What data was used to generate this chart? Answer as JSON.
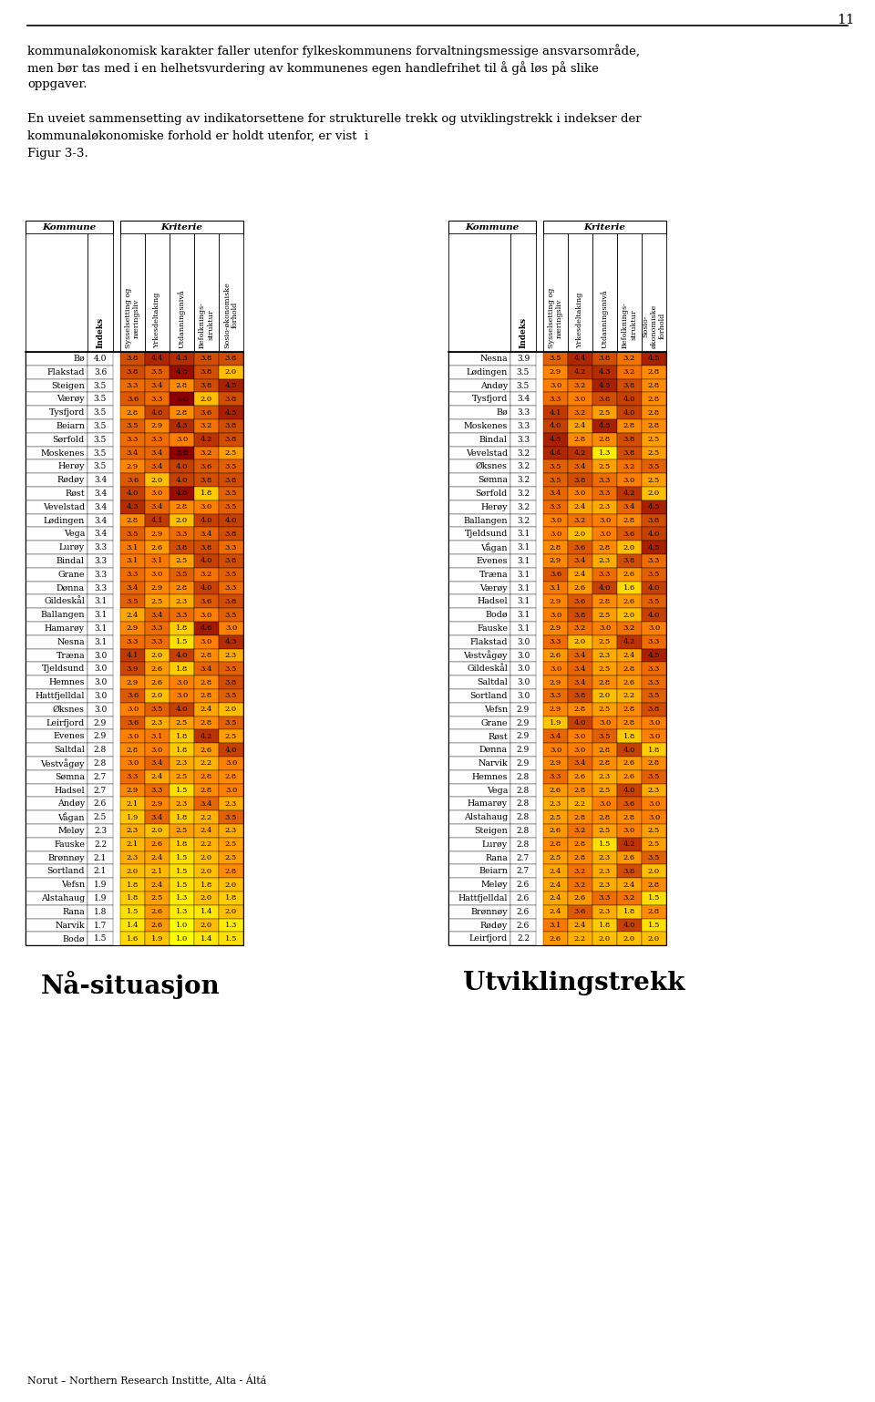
{
  "page_number": "11",
  "header_text": [
    "kommunaløkonomisk karakter faller utenfor fylkeskommunens forvaltningsmessige ansvarsområde,",
    "men bør tas med i en helhetsvurdering av kommunenes egen handlefrihet til å gå løs på slike",
    "oppgaver.",
    "",
    "En uveiet sammensetting av indikatorsettene for strukturelle trekk og utviklingstrekk i indekser der",
    "kommunaløkonomiske forhold er holdt utenfor, er vist  i",
    "Figur 3-3."
  ],
  "col_headers_left": [
    "Indeks",
    "Sysselsetting og\nnæringsliv",
    "Yrkesdeltaking",
    "Utdanningsnivå",
    "Befolknings-\nstruktur",
    "Sosio-økonomiske\nforhold"
  ],
  "col_headers_right": [
    "Indeks",
    "Sysselsetting og\nnæringsliv",
    "Yrkesdeltaking",
    "Utdanningsnivå",
    "Befolknings-\nstruktur",
    "Sosio-\nøkonomiske\nforhold"
  ],
  "section_left": "Nå-situasjon",
  "section_right": "Utviklingstrekk",
  "footer": "Norut – Northern Research Institte, Alta - Áltá",
  "left_data": [
    [
      "Bø",
      4.0,
      3.8,
      4.4,
      4.3,
      3.8,
      3.8
    ],
    [
      "Flakstad",
      3.6,
      3.8,
      3.5,
      4.8,
      3.8,
      2.0
    ],
    [
      "Steigen",
      3.5,
      3.3,
      3.4,
      2.8,
      3.8,
      4.5
    ],
    [
      "Værøy",
      3.5,
      3.6,
      3.3,
      5.0,
      2.0,
      3.8
    ],
    [
      "Tysfjord",
      3.5,
      2.8,
      4.0,
      2.8,
      3.6,
      4.5
    ],
    [
      "Beiarn",
      3.5,
      3.5,
      2.9,
      4.3,
      3.2,
      3.8
    ],
    [
      "Sørfold",
      3.5,
      3.3,
      3.3,
      3.0,
      4.2,
      3.8
    ],
    [
      "Moskenes",
      3.5,
      3.4,
      3.4,
      5.0,
      3.2,
      2.5
    ],
    [
      "Herøy",
      3.5,
      2.9,
      3.4,
      4.0,
      3.6,
      3.5
    ],
    [
      "Rødøy",
      3.4,
      3.6,
      2.0,
      4.0,
      3.8,
      3.8
    ],
    [
      "Røst",
      3.4,
      4.0,
      3.0,
      4.8,
      1.8,
      3.5
    ],
    [
      "Vevelstad",
      3.4,
      4.3,
      3.4,
      2.8,
      3.0,
      3.5
    ],
    [
      "Lødingen",
      3.4,
      2.8,
      4.1,
      2.0,
      4.0,
      4.0
    ],
    [
      "Vega",
      3.4,
      3.5,
      2.9,
      3.3,
      3.4,
      3.8
    ],
    [
      "Lurøy",
      3.3,
      3.1,
      2.6,
      3.8,
      3.8,
      3.3
    ],
    [
      "Bindal",
      3.3,
      3.1,
      3.1,
      2.5,
      4.0,
      3.8
    ],
    [
      "Grane",
      3.3,
      3.3,
      3.0,
      3.5,
      3.2,
      3.5
    ],
    [
      "Dønna",
      3.3,
      3.4,
      2.9,
      2.8,
      4.0,
      3.3
    ],
    [
      "Gildeskål",
      3.1,
      3.5,
      2.5,
      2.3,
      3.6,
      3.8
    ],
    [
      "Ballangen",
      3.1,
      2.4,
      3.4,
      3.3,
      3.0,
      3.5
    ],
    [
      "Hamarøy",
      3.1,
      2.9,
      3.3,
      1.8,
      4.6,
      3.0
    ],
    [
      "Nesna",
      3.1,
      3.3,
      3.3,
      1.5,
      3.0,
      4.3
    ],
    [
      "Træna",
      3.0,
      4.1,
      2.0,
      4.0,
      2.8,
      2.3
    ],
    [
      "Tjeldsund",
      3.0,
      3.9,
      2.6,
      1.8,
      3.4,
      3.5
    ],
    [
      "Hemnes",
      3.0,
      2.9,
      2.6,
      3.0,
      2.8,
      3.8
    ],
    [
      "Hattfjelldal",
      3.0,
      3.6,
      2.0,
      3.0,
      2.8,
      3.5
    ],
    [
      "Øksnes",
      3.0,
      3.0,
      3.5,
      4.0,
      2.4,
      2.0
    ],
    [
      "Leirfjord",
      2.9,
      3.6,
      2.3,
      2.5,
      2.8,
      3.5
    ],
    [
      "Evenes",
      2.9,
      3.0,
      3.1,
      1.8,
      4.2,
      2.5
    ],
    [
      "Saltdal",
      2.8,
      2.8,
      3.0,
      1.8,
      2.6,
      4.0
    ],
    [
      "Vestvågøy",
      2.8,
      3.0,
      3.4,
      2.3,
      2.2,
      3.0
    ],
    [
      "Sømna",
      2.7,
      3.3,
      2.4,
      2.5,
      2.8,
      2.8
    ],
    [
      "Hadsel",
      2.7,
      2.9,
      3.3,
      1.5,
      2.8,
      3.0
    ],
    [
      "Andøy",
      2.6,
      2.1,
      2.9,
      2.3,
      3.4,
      2.3
    ],
    [
      "Vågan",
      2.5,
      1.9,
      3.4,
      1.8,
      2.2,
      3.5
    ],
    [
      "Meløy",
      2.3,
      2.3,
      2.0,
      2.5,
      2.4,
      2.3
    ],
    [
      "Fauske",
      2.2,
      2.1,
      2.6,
      1.8,
      2.2,
      2.5
    ],
    [
      "Brønnøy",
      2.1,
      2.3,
      2.4,
      1.5,
      2.0,
      2.5
    ],
    [
      "Sortland",
      2.1,
      2.0,
      2.1,
      1.5,
      2.0,
      2.8
    ],
    [
      "Vefsn",
      1.9,
      1.8,
      2.4,
      1.5,
      1.8,
      2.0
    ],
    [
      "Alstahaug",
      1.9,
      1.8,
      2.5,
      1.3,
      2.0,
      1.8
    ],
    [
      "Rana",
      1.8,
      1.5,
      2.6,
      1.3,
      1.4,
      2.0
    ],
    [
      "Narvik",
      1.7,
      1.4,
      2.6,
      1.0,
      2.0,
      1.3
    ],
    [
      "Bodø",
      1.5,
      1.6,
      1.9,
      1.0,
      1.4,
      1.5
    ]
  ],
  "right_data": [
    [
      "Nesna",
      3.9,
      3.5,
      4.4,
      3.8,
      3.2,
      4.5
    ],
    [
      "Lødingen",
      3.5,
      2.9,
      4.2,
      4.3,
      3.2,
      2.8
    ],
    [
      "Andøy",
      3.5,
      3.0,
      3.2,
      4.5,
      3.8,
      2.8
    ],
    [
      "Tysfjord",
      3.4,
      3.3,
      3.0,
      3.8,
      4.0,
      2.8
    ],
    [
      "Bø",
      3.3,
      4.1,
      3.2,
      2.5,
      4.0,
      2.8
    ],
    [
      "Moskenes",
      3.3,
      4.0,
      2.4,
      4.5,
      2.8,
      2.8
    ],
    [
      "Bindal",
      3.3,
      4.5,
      2.8,
      2.8,
      3.8,
      2.5
    ],
    [
      "Vevelstad",
      3.2,
      4.4,
      4.2,
      1.3,
      3.8,
      2.5
    ],
    [
      "Øksnes",
      3.2,
      3.5,
      3.4,
      2.5,
      3.2,
      3.5
    ],
    [
      "Sømna",
      3.2,
      3.5,
      3.8,
      3.3,
      3.0,
      2.5
    ],
    [
      "Sørfold",
      3.2,
      3.4,
      3.0,
      3.3,
      4.2,
      2.0
    ],
    [
      "Herøy",
      3.2,
      3.3,
      2.4,
      2.3,
      3.4,
      4.5
    ],
    [
      "Ballangen",
      3.2,
      3.0,
      3.2,
      3.0,
      2.8,
      3.8
    ],
    [
      "Tjeldsund",
      3.1,
      3.0,
      2.0,
      3.0,
      3.6,
      4.0
    ],
    [
      "Vågan",
      3.1,
      2.8,
      3.6,
      2.8,
      2.0,
      4.5
    ],
    [
      "Evenes",
      3.1,
      2.9,
      3.4,
      2.3,
      3.8,
      3.3
    ],
    [
      "Træna",
      3.1,
      3.6,
      2.4,
      3.3,
      2.6,
      3.5
    ],
    [
      "Værøy",
      3.1,
      3.1,
      2.6,
      4.0,
      1.6,
      4.0
    ],
    [
      "Hadsel",
      3.1,
      2.9,
      3.6,
      2.8,
      2.6,
      3.5
    ],
    [
      "Bodø",
      3.1,
      3.0,
      3.8,
      2.5,
      2.0,
      4.0
    ],
    [
      "Fauske",
      3.1,
      2.9,
      3.2,
      3.0,
      3.2,
      3.0
    ],
    [
      "Flakstad",
      3.0,
      3.3,
      2.0,
      2.5,
      4.2,
      3.3
    ],
    [
      "Vestvågøy",
      3.0,
      2.6,
      3.4,
      2.3,
      2.4,
      4.5
    ],
    [
      "Gildeskål",
      3.0,
      3.0,
      3.4,
      2.5,
      2.8,
      3.3
    ],
    [
      "Saltdal",
      3.0,
      2.9,
      3.4,
      2.8,
      2.6,
      3.3
    ],
    [
      "Sortland",
      3.0,
      3.3,
      3.8,
      2.0,
      2.2,
      3.5
    ],
    [
      "Vefsn",
      2.9,
      2.9,
      2.8,
      2.5,
      2.8,
      3.8
    ],
    [
      "Grane",
      2.9,
      1.9,
      4.0,
      3.0,
      2.8,
      3.0
    ],
    [
      "Røst",
      2.9,
      3.4,
      3.0,
      3.5,
      1.8,
      3.0
    ],
    [
      "Dønna",
      2.9,
      3.0,
      3.0,
      2.8,
      4.0,
      1.8
    ],
    [
      "Narvik",
      2.9,
      2.9,
      3.4,
      2.8,
      2.6,
      2.8
    ],
    [
      "Hemnes",
      2.8,
      3.3,
      2.6,
      2.3,
      2.6,
      3.5
    ],
    [
      "Vega",
      2.8,
      2.6,
      2.8,
      2.5,
      4.0,
      2.3
    ],
    [
      "Hamarøy",
      2.8,
      2.3,
      2.2,
      3.0,
      3.6,
      3.0
    ],
    [
      "Alstahaug",
      2.8,
      2.5,
      2.8,
      2.8,
      2.8,
      3.0
    ],
    [
      "Steigen",
      2.8,
      2.6,
      3.2,
      2.5,
      3.0,
      2.5
    ],
    [
      "Lurøy",
      2.8,
      2.8,
      2.8,
      1.5,
      4.2,
      2.5
    ],
    [
      "Rana",
      2.7,
      2.5,
      2.8,
      2.3,
      2.6,
      3.5
    ],
    [
      "Beiarn",
      2.7,
      2.4,
      3.2,
      2.3,
      3.8,
      2.0
    ],
    [
      "Meløy",
      2.6,
      2.4,
      3.2,
      2.3,
      2.4,
      2.8
    ],
    [
      "Hattfjelldal",
      2.6,
      2.4,
      2.6,
      3.3,
      3.2,
      1.5
    ],
    [
      "Brønnøy",
      2.6,
      2.4,
      3.6,
      2.3,
      1.8,
      2.8
    ],
    [
      "Rødøy",
      2.6,
      3.1,
      2.4,
      1.8,
      4.0,
      1.5
    ],
    [
      "Leirfjord",
      2.2,
      2.6,
      2.2,
      2.0,
      2.0,
      2.0
    ]
  ]
}
